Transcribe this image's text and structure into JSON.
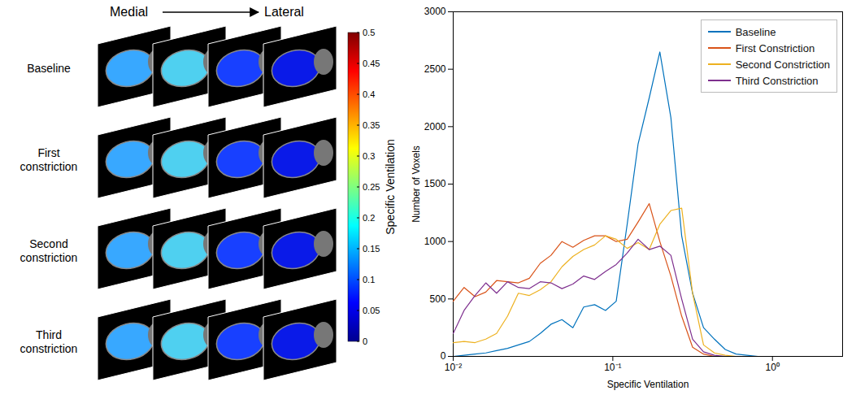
{
  "chart_data": [
    {
      "type": "image_grid",
      "column_labels": {
        "start": "Medial",
        "end": "Lateral"
      },
      "rows": [
        "Baseline",
        "First constriction",
        "Second constriction",
        "Third constriction"
      ],
      "colorbar": {
        "label": "Specific Ventilation",
        "range": [
          0,
          0.5
        ],
        "ticks": [
          0,
          0.05,
          0.1,
          0.15,
          0.2,
          0.25,
          0.3,
          0.35,
          0.4,
          0.45,
          0.5
        ]
      }
    },
    {
      "type": "line",
      "xlabel": "Specific Ventilation",
      "ylabel": "Number of Voxels",
      "log": "x",
      "xlim": [
        0.01,
        2.75
      ],
      "xticks": [
        {
          "value": 0.01,
          "label": "10⁻²"
        },
        {
          "value": 0.1,
          "label": "10⁻¹"
        },
        {
          "value": 1,
          "label": "10⁰"
        }
      ],
      "ylim": [
        0,
        3000
      ],
      "yticks": [
        0,
        500,
        1000,
        1500,
        2000,
        2500,
        3000
      ],
      "legend": "top-right",
      "x": [
        0.01,
        0.0117,
        0.0137,
        0.016,
        0.0187,
        0.0219,
        0.0256,
        0.03,
        0.0351,
        0.041,
        0.048,
        0.0562,
        0.0657,
        0.0769,
        0.09,
        0.105,
        0.123,
        0.144,
        0.169,
        0.197,
        0.231,
        0.27,
        0.316,
        0.37,
        0.433,
        0.506,
        0.592,
        0.693,
        0.811,
        0.949,
        1.11,
        1.3,
        1.52,
        1.78,
        2.08,
        2.44
      ],
      "series": [
        {
          "name": "Baseline",
          "color": "#0072BD",
          "values": [
            0,
            10,
            20,
            30,
            50,
            70,
            100,
            130,
            200,
            280,
            320,
            250,
            430,
            450,
            400,
            480,
            1150,
            1850,
            2250,
            2650,
            2080,
            1050,
            550,
            250,
            150,
            60,
            20,
            10,
            0,
            0,
            0,
            0,
            0,
            0,
            0,
            0
          ]
        },
        {
          "name": "First Constriction",
          "color": "#D95319",
          "values": [
            480,
            600,
            520,
            560,
            660,
            650,
            640,
            680,
            810,
            880,
            1000,
            950,
            1010,
            1050,
            1050,
            1000,
            1020,
            1170,
            1330,
            1000,
            700,
            350,
            80,
            20,
            0,
            0,
            0,
            0,
            0,
            0,
            0,
            0,
            0,
            0,
            0,
            0
          ]
        },
        {
          "name": "Second Constriction",
          "color": "#EDB120",
          "values": [
            120,
            130,
            120,
            150,
            200,
            350,
            550,
            530,
            580,
            650,
            780,
            870,
            930,
            970,
            1050,
            1020,
            940,
            990,
            930,
            1150,
            1270,
            1290,
            550,
            100,
            30,
            10,
            0,
            0,
            0,
            0,
            0,
            0,
            0,
            0,
            0,
            0
          ]
        },
        {
          "name": "Third Constriction",
          "color": "#7E2F8E",
          "values": [
            200,
            400,
            530,
            640,
            550,
            650,
            600,
            590,
            650,
            640,
            590,
            630,
            700,
            670,
            740,
            800,
            900,
            1020,
            930,
            960,
            880,
            500,
            150,
            40,
            10,
            0,
            0,
            0,
            0,
            0,
            0,
            0,
            0,
            0,
            0,
            0
          ]
        }
      ]
    }
  ]
}
